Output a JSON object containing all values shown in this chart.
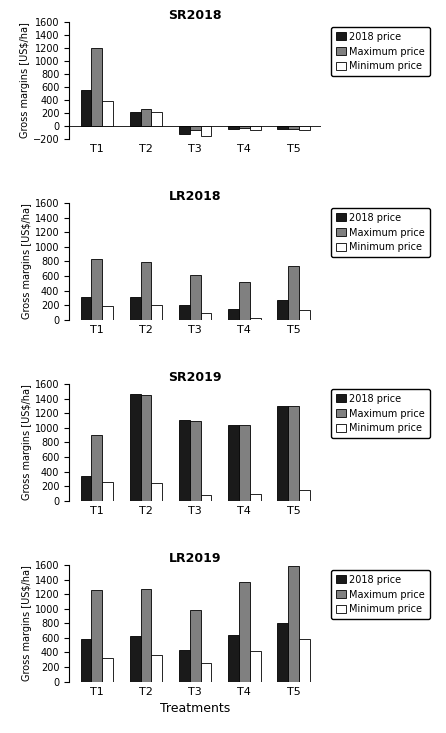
{
  "subplots": [
    {
      "title": "SR2018",
      "categories": [
        "T1",
        "T2",
        "T3",
        "T4",
        "T5"
      ],
      "price_2018": [
        550,
        215,
        -130,
        -50,
        -55
      ],
      "max_price": [
        1200,
        265,
        -60,
        -40,
        -45
      ],
      "min_price": [
        385,
        205,
        -155,
        -60,
        -65
      ],
      "ylim": [
        -200,
        1600
      ],
      "yticks": [
        -200,
        0,
        200,
        400,
        600,
        800,
        1000,
        1200,
        1400,
        1600
      ]
    },
    {
      "title": "LR2018",
      "categories": [
        "T1",
        "T2",
        "T3",
        "T4",
        "T5"
      ],
      "price_2018": [
        305,
        315,
        200,
        145,
        265
      ],
      "max_price": [
        830,
        790,
        615,
        515,
        740
      ],
      "min_price": [
        185,
        200,
        90,
        25,
        135
      ],
      "ylim": [
        0,
        1600
      ],
      "yticks": [
        0,
        200,
        400,
        600,
        800,
        1000,
        1200,
        1400,
        1600
      ]
    },
    {
      "title": "SR2019",
      "categories": [
        "T1",
        "T2",
        "T3",
        "T4",
        "T5"
      ],
      "price_2018": [
        340,
        1460,
        1100,
        1040,
        1300
      ],
      "max_price": [
        905,
        1450,
        1095,
        1035,
        1295
      ],
      "min_price": [
        250,
        240,
        85,
        95,
        145
      ],
      "ylim": [
        0,
        1600
      ],
      "yticks": [
        0,
        200,
        400,
        600,
        800,
        1000,
        1200,
        1400,
        1600
      ]
    },
    {
      "title": "LR2019",
      "categories": [
        "T1",
        "T2",
        "T3",
        "T4",
        "T5"
      ],
      "price_2018": [
        590,
        620,
        430,
        640,
        810
      ],
      "max_price": [
        1250,
        1270,
        980,
        1360,
        1580
      ],
      "min_price": [
        330,
        360,
        250,
        420,
        580
      ],
      "ylim": [
        0,
        1600
      ],
      "yticks": [
        0,
        200,
        400,
        600,
        800,
        1000,
        1200,
        1400,
        1600
      ]
    }
  ],
  "bar_colors": [
    "#1a1a1a",
    "#808080",
    "#ffffff"
  ],
  "bar_edge_color": "#000000",
  "ylabel": "Gross margins [US$/ha]",
  "xlabel": "Treatments",
  "legend_labels": [
    "2018 price",
    "Maximum price",
    "Minimum price"
  ],
  "bar_width": 0.22
}
